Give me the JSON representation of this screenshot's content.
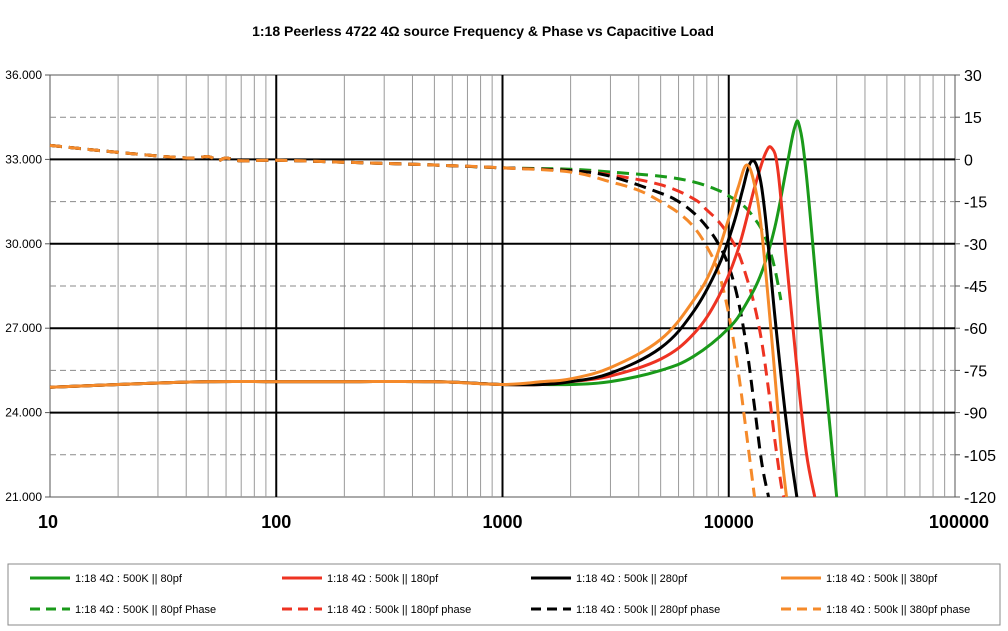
{
  "chart_data": {
    "type": "line",
    "title": "1:18 Peerless 4722  4Ω source Frequency & Phase vs Capacitive Load",
    "x_scale": "log",
    "xlim": [
      10,
      100000
    ],
    "x_ticks": [
      "10",
      "100",
      "1000",
      "10000",
      "100000"
    ],
    "ylim_left": [
      21,
      36
    ],
    "y_ticks_left": [
      "36.000",
      "33.000",
      "30.000",
      "27.000",
      "24.000",
      "21.000"
    ],
    "ylim_right": [
      -120,
      30
    ],
    "y_ticks_right": [
      "30",
      "15",
      "0",
      "-15",
      "-30",
      "-45",
      "-60",
      "-75",
      "-90",
      "-105",
      "-120"
    ],
    "grid": true,
    "legend_position": "bottom",
    "series": [
      {
        "name": "1:18 4Ω : 500K || 80pf",
        "axis": "left",
        "style": "solid",
        "color": "#1a9a1a",
        "x": [
          10,
          20,
          50,
          100,
          200,
          500,
          1000,
          1500,
          2000,
          3000,
          5000,
          7000,
          10000,
          12000,
          14000,
          16000,
          18000,
          19500,
          20500,
          22000,
          25000,
          28000,
          30000
        ],
        "y": [
          24.9,
          25.0,
          25.1,
          25.1,
          25.1,
          25.1,
          25.0,
          25.0,
          25.0,
          25.1,
          25.5,
          26.0,
          27.0,
          27.9,
          29.0,
          30.6,
          32.7,
          34.1,
          34.2,
          32.5,
          27.6,
          23.5,
          21.0
        ]
      },
      {
        "name": "1:18 4Ω : 500k || 180pf",
        "axis": "left",
        "style": "solid",
        "color": "#ee3322",
        "x": [
          10,
          20,
          50,
          100,
          200,
          500,
          1000,
          1500,
          2000,
          3000,
          5000,
          7000,
          9000,
          11000,
          13000,
          14500,
          15500,
          16500,
          18000,
          20000,
          22000,
          24000
        ],
        "y": [
          24.9,
          25.0,
          25.1,
          25.1,
          25.1,
          25.1,
          25.0,
          25.0,
          25.1,
          25.3,
          25.9,
          26.8,
          28.1,
          29.8,
          32.0,
          33.2,
          33.4,
          32.6,
          29.4,
          25.6,
          22.6,
          21.0
        ]
      },
      {
        "name": "1:18 4Ω : 500k || 280pf",
        "axis": "left",
        "style": "solid",
        "color": "#000000",
        "x": [
          10,
          20,
          50,
          100,
          200,
          500,
          1000,
          1500,
          2000,
          3000,
          5000,
          7000,
          9000,
          10500,
          11500,
          12500,
          13500,
          14500,
          16000,
          18000,
          20000
        ],
        "y": [
          24.9,
          25.0,
          25.1,
          25.1,
          25.1,
          25.1,
          25.0,
          25.0,
          25.1,
          25.4,
          26.3,
          27.6,
          29.2,
          30.7,
          31.9,
          32.9,
          32.6,
          31.0,
          27.4,
          23.6,
          21.0
        ]
      },
      {
        "name": "1:18 4Ω : 500k || 380pf",
        "axis": "left",
        "style": "solid",
        "color": "#f58a2a",
        "x": [
          10,
          20,
          50,
          100,
          200,
          500,
          1000,
          1500,
          2000,
          3000,
          5000,
          7000,
          8500,
          10000,
          11000,
          12000,
          13000,
          14000,
          15500,
          17000,
          18000
        ],
        "y": [
          24.9,
          25.0,
          25.1,
          25.1,
          25.1,
          25.1,
          25.0,
          25.1,
          25.2,
          25.6,
          26.6,
          28.0,
          29.2,
          30.9,
          32.0,
          32.8,
          32.1,
          30.4,
          26.6,
          22.8,
          21.0
        ]
      },
      {
        "name": "1:18 4Ω : 500K || 80pf Phase",
        "axis": "right",
        "style": "dashed",
        "color": "#1a9a1a",
        "x": [
          10,
          20,
          40,
          50,
          55,
          60,
          70,
          100,
          200,
          500,
          1000,
          2000,
          3000,
          5000,
          7000,
          9000,
          10000,
          11000,
          12000,
          13000,
          14000,
          15000,
          16000,
          17000
        ],
        "y": [
          5,
          2.5,
          0.5,
          1,
          -0.5,
          0.5,
          -0.5,
          -0.3,
          -1,
          -2,
          -3,
          -3.5,
          -4.5,
          -6,
          -8,
          -11,
          -13,
          -15,
          -17.5,
          -21,
          -25,
          -31,
          -39,
          -50
        ]
      },
      {
        "name": "1:18 4Ω : 500k || 180pf phase",
        "axis": "right",
        "style": "dashed",
        "color": "#ee3322",
        "x": [
          10,
          20,
          40,
          50,
          55,
          60,
          70,
          100,
          200,
          500,
          1000,
          2000,
          3000,
          5000,
          7000,
          8000,
          9000,
          10000,
          11000,
          12000,
          13000,
          14000,
          15000,
          16000,
          17000,
          17500
        ],
        "y": [
          5,
          2.5,
          0.5,
          1,
          -0.5,
          0.5,
          -0.5,
          -0.3,
          -1,
          -2,
          -3,
          -4,
          -5.5,
          -9,
          -14,
          -18,
          -22,
          -27,
          -33,
          -42,
          -52,
          -65,
          -82,
          -100,
          -115,
          -120
        ]
      },
      {
        "name": "1:18 4Ω : 500k || 280pf phase",
        "axis": "right",
        "style": "dashed",
        "color": "#000000",
        "x": [
          10,
          20,
          40,
          50,
          55,
          60,
          70,
          100,
          200,
          500,
          1000,
          2000,
          3000,
          5000,
          6000,
          7000,
          8000,
          9000,
          10000,
          11000,
          12000,
          13000,
          14000,
          15000
        ],
        "y": [
          5,
          2.5,
          0.5,
          1,
          -0.5,
          0.5,
          -0.5,
          -0.3,
          -1,
          -2,
          -3,
          -4,
          -6,
          -12,
          -15,
          -19,
          -24,
          -30,
          -38,
          -50,
          -67,
          -88,
          -108,
          -120
        ]
      },
      {
        "name": "1:18 4Ω : 500k || 380pf phase",
        "axis": "right",
        "style": "dashed",
        "color": "#f58a2a",
        "x": [
          10,
          20,
          40,
          50,
          55,
          60,
          70,
          100,
          200,
          500,
          1000,
          2000,
          3000,
          4000,
          5000,
          6000,
          7000,
          8000,
          9000,
          10000,
          11000,
          12000,
          13000
        ],
        "y": [
          5,
          2.5,
          0.5,
          1,
          -0.5,
          0.5,
          -0.5,
          -0.3,
          -1,
          -2,
          -3,
          -4.5,
          -8,
          -11,
          -15,
          -19,
          -24,
          -31,
          -40,
          -55,
          -75,
          -98,
          -120
        ]
      }
    ]
  }
}
